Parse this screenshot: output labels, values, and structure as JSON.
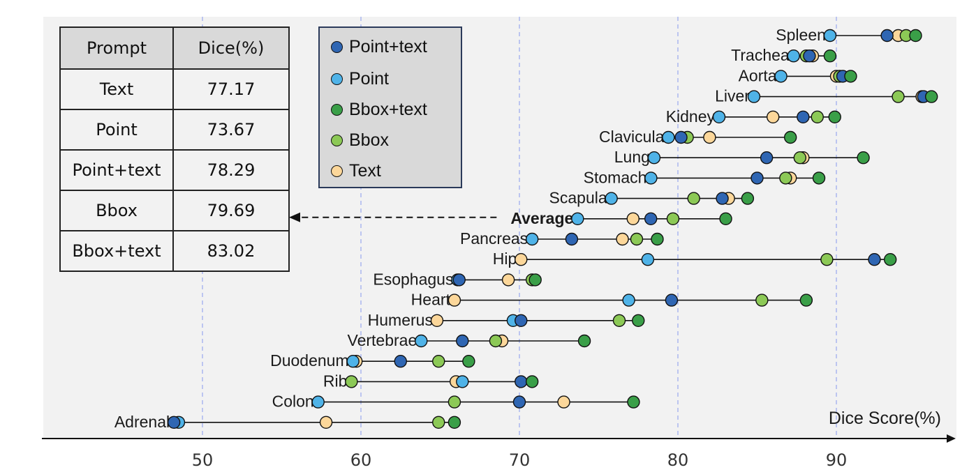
{
  "chart_data": {
    "type": "scatter",
    "xlabel": "Dice Score(%)",
    "xlim": [
      40.5,
      96.5
    ],
    "xticks": [
      50,
      60,
      70,
      80,
      90
    ],
    "series": [
      {
        "name": "Point+text",
        "color": "#2f66b3"
      },
      {
        "name": "Point",
        "color": "#4fb3e8"
      },
      {
        "name": "Bbox+text",
        "color": "#3a9f48"
      },
      {
        "name": "Bbox",
        "color": "#8cc956"
      },
      {
        "name": "Text",
        "color": "#fcd79a"
      }
    ],
    "rows": [
      {
        "label": "Spleen",
        "bold": false,
        "values": {
          "Point": 89.6,
          "Point+text": 93.2,
          "Text": 93.9,
          "Bbox": 94.4,
          "Bbox+text": 95.0
        }
      },
      {
        "label": "Trachea",
        "bold": false,
        "values": {
          "Point": 87.3,
          "Bbox": 88.1,
          "Point+text": 88.3,
          "Text": 88.5,
          "Bbox+text": 89.6
        }
      },
      {
        "label": "Aorta",
        "bold": false,
        "values": {
          "Point": 86.5,
          "Text": 90.0,
          "Bbox": 90.2,
          "Point+text": 90.4,
          "Bbox+text": 90.9
        }
      },
      {
        "label": "Liver",
        "bold": false,
        "values": {
          "Point": 84.8,
          "Bbox": 93.9,
          "Text": 95.4,
          "Point+text": 95.5,
          "Bbox+text": 96.0
        }
      },
      {
        "label": "Kidney",
        "bold": false,
        "values": {
          "Point": 82.6,
          "Text": 86.0,
          "Point+text": 87.9,
          "Bbox": 88.8,
          "Bbox+text": 89.9
        }
      },
      {
        "label": "Clavicula",
        "bold": false,
        "values": {
          "Point": 79.4,
          "Point+text": 80.2,
          "Bbox": 80.6,
          "Text": 82.0,
          "Bbox+text": 87.1
        }
      },
      {
        "label": "Lung",
        "bold": false,
        "values": {
          "Point": 78.5,
          "Point+text": 85.6,
          "Text": 87.9,
          "Bbox": 87.7,
          "Bbox+text": 91.7
        }
      },
      {
        "label": "Stomach",
        "bold": false,
        "values": {
          "Point": 78.3,
          "Point+text": 85.0,
          "Text": 87.1,
          "Bbox": 86.8,
          "Bbox+text": 88.9
        }
      },
      {
        "label": "Scapula",
        "bold": false,
        "values": {
          "Point": 75.8,
          "Bbox": 81.0,
          "Point+text": 82.8,
          "Text": 83.2,
          "Bbox+text": 84.4
        }
      },
      {
        "label": "Average",
        "bold": true,
        "values": {
          "Point": 73.67,
          "Text": 77.17,
          "Point+text": 78.29,
          "Bbox": 79.69,
          "Bbox+text": 83.02
        }
      },
      {
        "label": "Pancreas",
        "bold": false,
        "values": {
          "Point": 70.8,
          "Point+text": 73.3,
          "Text": 76.5,
          "Bbox": 77.4,
          "Bbox+text": 78.7
        }
      },
      {
        "label": "Hip",
        "bold": false,
        "values": {
          "Text": 70.1,
          "Point": 78.1,
          "Bbox": 89.4,
          "Point+text": 92.4,
          "Bbox+text": 93.4
        }
      },
      {
        "label": "Esophagus",
        "bold": false,
        "values": {
          "Point+text": 66.2,
          "Point": 66.1,
          "Text": 69.3,
          "Bbox": 70.8,
          "Bbox+text": 71.0
        }
      },
      {
        "label": "Heart",
        "bold": false,
        "values": {
          "Text": 65.9,
          "Point": 76.9,
          "Point+text": 79.6,
          "Bbox": 85.3,
          "Bbox+text": 88.1
        }
      },
      {
        "label": "Humerus",
        "bold": false,
        "values": {
          "Text": 64.8,
          "Point": 69.6,
          "Point+text": 70.1,
          "Bbox": 76.3,
          "Bbox+text": 77.5
        }
      },
      {
        "label": "Vertebrae",
        "bold": false,
        "values": {
          "Point": 63.8,
          "Point+text": 66.4,
          "Bbox": 68.5,
          "Text": 68.9,
          "Bbox+text": 74.1
        }
      },
      {
        "label": "Duodenum",
        "bold": false,
        "values": {
          "Text": 59.7,
          "Point": 59.5,
          "Point+text": 62.5,
          "Bbox": 64.9,
          "Bbox+text": 66.8
        }
      },
      {
        "label": "Rib",
        "bold": false,
        "values": {
          "Bbox": 59.4,
          "Text": 66.0,
          "Point": 66.4,
          "Point+text": 70.1,
          "Bbox+text": 70.8
        }
      },
      {
        "label": "Colon",
        "bold": false,
        "values": {
          "Point": 57.3,
          "Bbox": 65.9,
          "Point+text": 70.0,
          "Text": 72.8,
          "Bbox+text": 77.2
        }
      },
      {
        "label": "Adrenal",
        "bold": false,
        "values": {
          "Point+text": 48.2,
          "Point": 48.5,
          "Text": 57.8,
          "Bbox": 64.9,
          "Bbox+text": 65.9
        }
      }
    ],
    "grid": "dashed vertical lines at 50, 60, 70, 80, 90",
    "legend_position": "top-center"
  },
  "table": {
    "headers": [
      "Prompt",
      "Dice(%)"
    ],
    "rows": [
      [
        "Text",
        "77.17"
      ],
      [
        "Point",
        "73.67"
      ],
      [
        "Point+text",
        "78.29"
      ],
      [
        "Bbox",
        "79.69"
      ],
      [
        "Bbox+text",
        "83.02"
      ]
    ]
  }
}
